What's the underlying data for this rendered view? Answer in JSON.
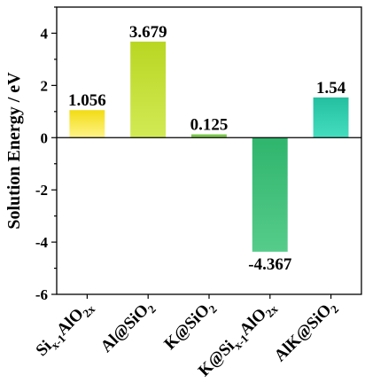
{
  "chart_data": {
    "type": "bar",
    "title": "",
    "ylabel": "Solution Energy / eV",
    "xlabel": "",
    "ylim": [
      -6,
      5
    ],
    "yticks": [
      -6,
      -4,
      -2,
      0,
      2,
      4
    ],
    "ytick_labels": [
      "-6",
      "-4",
      "-2",
      "0",
      "2",
      "4"
    ],
    "grid": false,
    "categories": [
      {
        "parts": [
          [
            "Si",
            ""
          ],
          [
            "x-1",
            "sub"
          ],
          [
            "AlO",
            ""
          ],
          [
            "2x",
            "sub"
          ]
        ]
      },
      {
        "parts": [
          [
            "Al@SiO",
            ""
          ],
          [
            "2",
            "sub"
          ]
        ]
      },
      {
        "parts": [
          [
            "K@SiO",
            ""
          ],
          [
            "2",
            "sub"
          ]
        ]
      },
      {
        "parts": [
          [
            "K@Si",
            ""
          ],
          [
            "x-1",
            "sub"
          ],
          [
            "AlO",
            ""
          ],
          [
            "2x",
            "sub"
          ]
        ]
      },
      {
        "parts": [
          [
            "AlK@SiO",
            ""
          ],
          [
            "2",
            "sub"
          ]
        ]
      }
    ],
    "values": [
      1.056,
      3.679,
      0.125,
      -4.367,
      1.54
    ],
    "value_labels": [
      "1.056",
      "3.679",
      "0.125",
      "-4.367",
      "1.54"
    ],
    "colors": [
      [
        "#f2dc14",
        "#fff38a"
      ],
      [
        "#b9d622",
        "#d2ea55"
      ],
      [
        "#6cc13a",
        "#8fd45c"
      ],
      [
        "#2fb56d",
        "#56cc8a"
      ],
      [
        "#23bfa0",
        "#45ddc0"
      ]
    ]
  }
}
